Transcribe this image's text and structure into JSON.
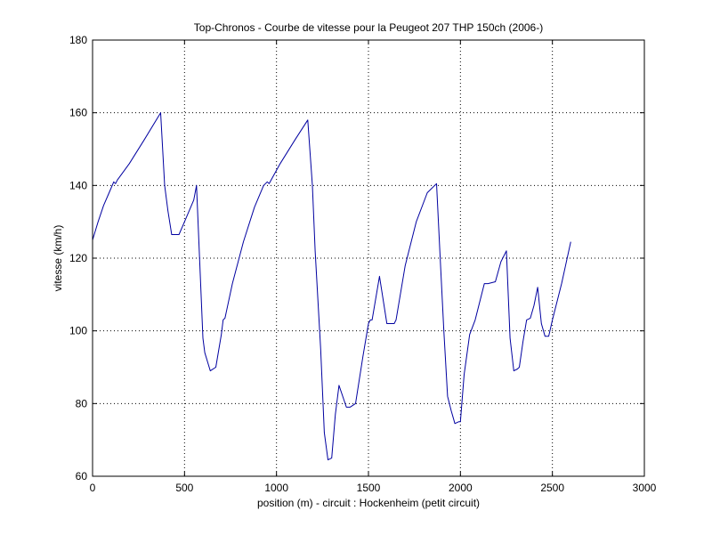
{
  "chart_data": {
    "type": "line",
    "title": "Top-Chronos - Courbe de vitesse pour la Peugeot 207 THP 150ch (2006-)",
    "xlabel": "position (m) - circuit : Hockenheim (petit circuit)",
    "ylabel": "vitesse (km/h)",
    "xlim": [
      0,
      3000
    ],
    "ylim": [
      60,
      180
    ],
    "xticks": [
      0,
      500,
      1000,
      1500,
      2000,
      2500,
      3000
    ],
    "yticks": [
      60,
      80,
      100,
      120,
      140,
      160,
      180
    ],
    "grid": true,
    "line_color": "#0000a0",
    "series": [
      {
        "x": [
          0,
          30,
          60,
          90,
          115,
          125,
          135,
          200,
          280,
          370,
          392,
          410,
          430,
          470,
          500,
          550,
          565,
          600,
          610,
          640,
          670,
          700,
          710,
          720,
          760,
          820,
          880,
          930,
          950,
          960,
          1020,
          1100,
          1170,
          1195,
          1210,
          1240,
          1260,
          1280,
          1300,
          1320,
          1340,
          1380,
          1400,
          1430,
          1470,
          1500,
          1510,
          1520,
          1560,
          1600,
          1640,
          1650,
          1700,
          1760,
          1820,
          1870,
          1890,
          1910,
          1930,
          1950,
          1970,
          1990,
          2000,
          2020,
          2050,
          2080,
          2100,
          2130,
          2150,
          2190,
          2220,
          2250,
          2270,
          2290,
          2310,
          2320,
          2340,
          2360,
          2380,
          2400,
          2420,
          2440,
          2460,
          2480,
          2500,
          2550,
          2600
        ],
        "y": [
          125,
          130,
          134.5,
          138,
          141,
          140.5,
          141.5,
          146,
          152.5,
          160,
          140,
          133,
          126.5,
          126.5,
          130,
          136,
          140,
          98,
          94,
          89,
          90,
          99,
          103,
          103.5,
          113,
          124.5,
          134,
          140,
          141,
          140.5,
          146,
          152.5,
          158,
          140,
          122,
          95,
          72,
          64.5,
          65,
          77,
          85,
          79,
          79,
          80,
          93,
          102,
          103,
          103,
          115,
          102,
          102,
          103,
          118,
          130,
          138,
          140.5,
          120,
          100,
          82,
          78,
          74.5,
          75,
          75,
          88,
          99,
          103,
          107,
          113,
          113,
          113.5,
          119,
          122,
          98,
          89,
          89.5,
          90,
          97,
          103,
          103.5,
          107,
          112,
          102,
          98.5,
          98.5,
          103,
          113,
          124.5
        ]
      }
    ]
  }
}
